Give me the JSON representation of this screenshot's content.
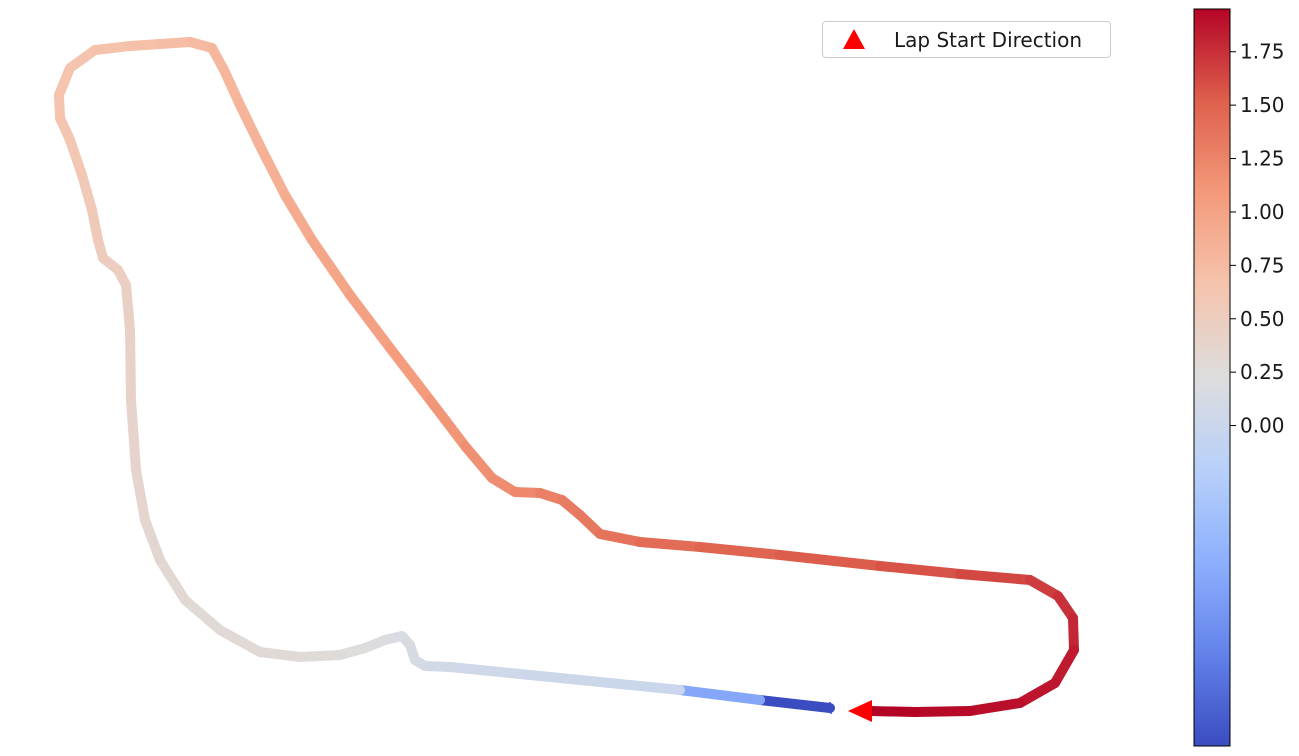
{
  "chart_data": {
    "type": "track-map",
    "colormap": "coolwarm",
    "color_range": [
      -1.5,
      1.95
    ],
    "colorbar_ticks": [
      "0.00",
      "0.25",
      "0.50",
      "0.75",
      "1.00",
      "1.25",
      "1.50",
      "1.75"
    ],
    "colorbar_tick_values": [
      0,
      0.25,
      0.5,
      0.75,
      1.0,
      1.25,
      1.5,
      1.75
    ],
    "legend": {
      "label": "Lap Start Direction",
      "marker": "triangle",
      "color": "#ff0000",
      "placement": "top-right"
    },
    "track_color_values": [
      -1.5,
      0.0,
      0.05,
      0.1,
      0.15,
      0.2,
      0.25,
      0.3,
      0.3,
      0.35,
      0.4,
      0.45,
      0.5,
      0.55,
      0.6,
      0.65,
      0.65,
      0.7,
      0.75,
      0.8,
      0.85,
      0.95,
      1.05,
      1.15,
      1.2,
      1.3,
      1.35,
      1.45,
      1.55,
      1.65,
      1.75,
      1.85,
      1.9,
      1.95
    ],
    "axes_visible": false,
    "grid": false
  }
}
